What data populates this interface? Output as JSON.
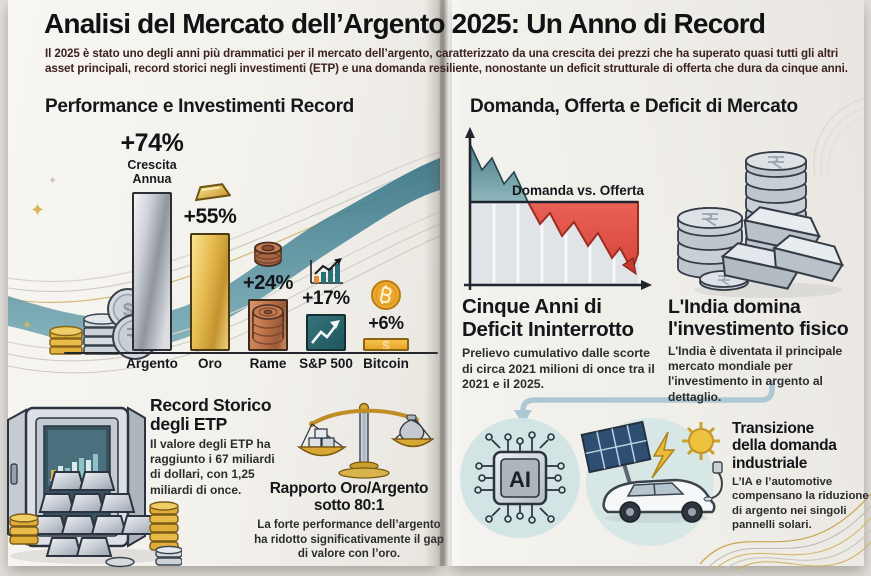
{
  "palette": {
    "page_bg": "#f3f1ec",
    "title_black": "#121214",
    "subtitle_maroon": "#3c2220",
    "accent_teal": "#3f7e92",
    "deficit_red": "#df5347",
    "gold": "#ddb44a",
    "silver": "#c7ccd4",
    "copper": "#b5714a",
    "sp500_teal": "#2a656c",
    "bitcoin_orange": "#eeb33c",
    "circle_blue": "#d3e5e4",
    "arrow_blue": "#adc8d2"
  },
  "decor": {
    "sparkle": "✦",
    "dollar_symbol": "$",
    "rupee_symbol": "₹",
    "bitcoin_symbol": "₿"
  },
  "header": {
    "title": "Analisi del Mercato dell’Argento 2025: Un Anno di Record",
    "subtitle": "Il 2025 è stato uno degli anni più drammatici per il mercato dell’argento, caratterizzato da una crescita dei prezzi che ha superato quasi tutti gli altri asset principali, record storici negli investimenti (ETP) e una domanda resiliente, nonostante un deficit strutturale di offerta che dura da cinque anni."
  },
  "left": {
    "heading": "Performance e Investimenti Record",
    "etp": {
      "title": "Record Storico degli ETP",
      "body": "Il valore degli ETP ha raggiunto i 67 miliardi di dollari, con 1,25 miliardi di once."
    },
    "ratio": {
      "title_line1": "Rapporto Oro/Argento",
      "title_line2": "sotto 80:1",
      "body": "La forte performance dell’argento ha ridotto significativamente il gap di valore con l’oro."
    }
  },
  "right": {
    "heading": "Domanda, Offerta e Deficit di Mercato",
    "deficit": {
      "chart_label": "Domanda vs. Offerta",
      "title_line1": "Cinque Anni di",
      "title_line2": "Deficit Ininterrotto",
      "body_prefix": "Prelievo cumulativo dalle scorte di circa ",
      "body_bold": "2021",
      "body_suffix": " milioni di once tra il 2021 e il 2025."
    },
    "india": {
      "title_line1": "L'India domina",
      "title_line2": "l'investimento fisico",
      "body": "L'India è diventata il principale mercato mondiale per l'investimento in argento al dettaglio."
    },
    "transition": {
      "title_line1": "Transizione",
      "title_line2": "della domanda",
      "title_line3": "industriale",
      "body": "L’IA e l’automotive compensano la riduzione di argento nei singoli pannelli solari.",
      "ai_chip_label": "AI"
    }
  },
  "chart_data": [
    {
      "type": "bar",
      "title": "Performance e Investimenti Record",
      "categories": [
        "Argento",
        "Oro",
        "Rame",
        "S&P 500",
        "Bitcoin"
      ],
      "values": [
        74,
        55,
        24,
        17,
        6
      ],
      "value_labels": [
        "+74%",
        "+55%",
        "+24%",
        "+17%",
        "+6%"
      ],
      "annotation": "Crescita Annua",
      "unit": "crescita annua %",
      "ylim": [
        0,
        80
      ],
      "grid": false,
      "bar_colors": [
        "argento-metallico",
        "oro",
        "rame",
        "teal S&P",
        "oro-bitcoin"
      ]
    },
    {
      "type": "area",
      "title": "Domanda vs. Offerta",
      "series": [
        {
          "name": "Domanda",
          "shape": "linea orizzontale costante"
        },
        {
          "name": "Offerta",
          "shape": "zigzag in forte calo che scende sotto la domanda"
        }
      ],
      "annotation": "area rossa con freccia in discesa = deficit di offerta (cinque anni ininterrotti, 2021–2025)",
      "legend_position": "etichetta sopra la linea della domanda"
    }
  ]
}
